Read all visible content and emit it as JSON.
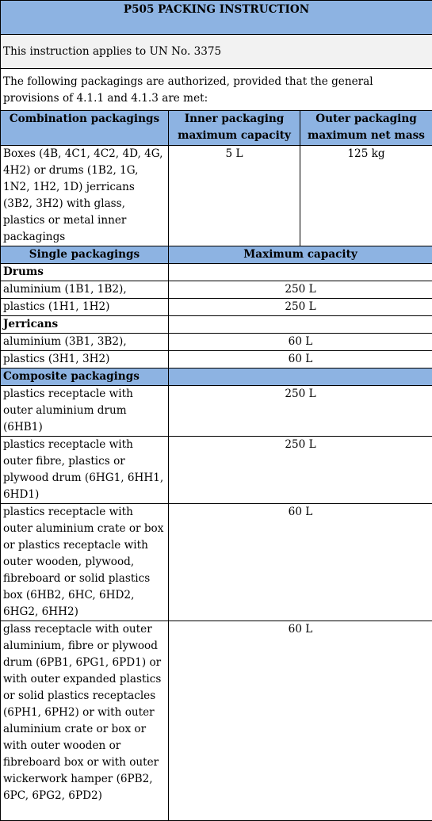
{
  "title": "P505 PACKING INSTRUCTION",
  "applies_to": "This instruction applies to UN No. 3375",
  "intro": "The following packagings are authorized, provided that the general provisions of 4.1.1 and 4.1.3 are met:",
  "combination": {
    "headers": {
      "col1": "Combination packagings",
      "col2_line1": "Inner packaging",
      "col2_line2": "maximum capacity",
      "col3_line1": "Outer packaging",
      "col3_line2": "maximum net mass"
    },
    "row": {
      "description": "Boxes (4B, 4C1, 4C2, 4D, 4G, 4H2) or drums (1B2, 1G, 1N2, 1H2, 1D) jerricans (3B2, 3H2) with glass, plastics or metal inner packagings",
      "inner_capacity": "5 L",
      "outer_mass": "125 kg"
    }
  },
  "single": {
    "headers": {
      "col1": "Single packagings",
      "col2": "Maximum capacity"
    },
    "drums": {
      "label": "Drums",
      "rows": [
        {
          "description": "aluminium (1B1, 1B2),",
          "capacity": "250 L"
        },
        {
          "description": "plastics (1H1, 1H2)",
          "capacity": "250 L"
        }
      ]
    },
    "jerricans": {
      "label": "Jerricans",
      "rows": [
        {
          "description": "aluminium (3B1, 3B2),",
          "capacity": "60 L"
        },
        {
          "description": "plastics (3H1, 3H2)",
          "capacity": "60 L"
        }
      ]
    },
    "composite": {
      "label": "Composite packagings",
      "rows": [
        {
          "description": "plastics receptacle with outer aluminium drum (6HB1)",
          "capacity": "250 L"
        },
        {
          "description": "plastics receptacle with outer fibre, plastics or plywood drum (6HG1, 6HH1, 6HD1)",
          "capacity": "250 L"
        },
        {
          "description": "plastics receptacle with outer aluminium crate or box or plastics receptacle with outer wooden, plywood, fibreboard or solid plastics box (6HB2, 6HC, 6HD2, 6HG2, 6HH2)",
          "capacity": "60 L"
        },
        {
          "description": "glass receptacle with outer aluminium, fibre or plywood drum (6PB1, 6PG1, 6PD1) or with outer expanded plastics or solid plastics receptacles (6PH1, 6PH2) or with outer aluminium crate or box or with outer wooden or fibreboard box or with outer wickerwork hamper (6PB2, 6PC, 6PG2, 6PD2)",
          "capacity": "60 L"
        }
      ]
    }
  },
  "colors": {
    "header_blue": "#8db3e2",
    "section_grey": "#f2f2f2"
  }
}
